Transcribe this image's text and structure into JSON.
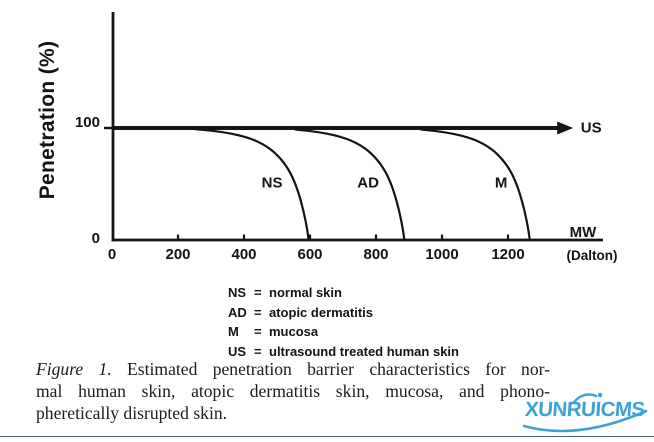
{
  "figure": {
    "caption": {
      "figure_label": "Figure 1.",
      "line1_rest": "Estimated penetration barrier characteristics for nor-",
      "line2": "mal human skin, atopic dermatitis skin, mucosa, and phono-",
      "line3": "pheretically disrupted skin."
    },
    "legend": {
      "items": [
        {
          "abbr": "NS",
          "equals": "=",
          "definition": "normal skin"
        },
        {
          "abbr": "AD",
          "equals": "=",
          "definition": "atopic dermatitis"
        },
        {
          "abbr": "M",
          "equals": "=",
          "definition": "mucosa"
        },
        {
          "abbr": "US",
          "equals": "=",
          "definition": "ultrasound treated human skin"
        }
      ]
    },
    "watermark": {
      "text": "XUNRUICMS",
      "color": "#3da2d8"
    }
  },
  "colors": {
    "ink": "#141414",
    "bottom_rule": "#4a6374",
    "background": "#ffffff"
  },
  "chart_data": {
    "type": "line",
    "title": "",
    "ylabel": "Penetration (%)",
    "xlabel": "MW (Dalton)",
    "axis_labels": {
      "x_line1": "MW",
      "x_line2": "(Dalton)",
      "y": "Penetration (%)"
    },
    "xlim": [
      0,
      1480
    ],
    "ylim": [
      0,
      100
    ],
    "x_ticks": [
      0,
      200,
      400,
      600,
      800,
      1000,
      1200
    ],
    "y_ticks": [
      100,
      0
    ],
    "grid": false,
    "legend_position": "below",
    "series": [
      {
        "name": "NS",
        "description": "normal skin",
        "points": [
          [
            0,
            100
          ],
          [
            200,
            100
          ],
          [
            270,
            98.5
          ],
          [
            330,
            96.5
          ],
          [
            390,
            93
          ],
          [
            440,
            88
          ],
          [
            480,
            81
          ],
          [
            515,
            71
          ],
          [
            540,
            60
          ],
          [
            558,
            48
          ],
          [
            572,
            35
          ],
          [
            583,
            22
          ],
          [
            591,
            10
          ],
          [
            596,
            0
          ]
        ],
        "label_anchor": [
          485,
          51
        ]
      },
      {
        "name": "AD",
        "description": "atopic dermatitis",
        "points": [
          [
            0,
            100
          ],
          [
            490,
            100
          ],
          [
            560,
            98.5
          ],
          [
            620,
            96.5
          ],
          [
            680,
            93
          ],
          [
            730,
            88
          ],
          [
            770,
            81
          ],
          [
            805,
            71
          ],
          [
            830,
            60
          ],
          [
            848,
            48
          ],
          [
            862,
            35
          ],
          [
            873,
            22
          ],
          [
            881,
            10
          ],
          [
            886,
            0
          ]
        ],
        "label_anchor": [
          776,
          51
        ]
      },
      {
        "name": "M",
        "description": "mucosa",
        "points": [
          [
            0,
            100
          ],
          [
            870,
            100
          ],
          [
            940,
            98.5
          ],
          [
            1000,
            96.5
          ],
          [
            1060,
            93
          ],
          [
            1110,
            88
          ],
          [
            1150,
            81
          ],
          [
            1185,
            71
          ],
          [
            1210,
            60
          ],
          [
            1228,
            48
          ],
          [
            1242,
            35
          ],
          [
            1253,
            22
          ],
          [
            1261,
            10
          ],
          [
            1266,
            0
          ]
        ],
        "label_anchor": [
          1179,
          51
        ]
      },
      {
        "name": "US",
        "description": "ultrasound treated human skin",
        "points": [
          [
            0,
            100
          ],
          [
            1352,
            100
          ]
        ],
        "arrow_end": true,
        "label_anchor": [
          1452,
          100
        ]
      }
    ]
  }
}
